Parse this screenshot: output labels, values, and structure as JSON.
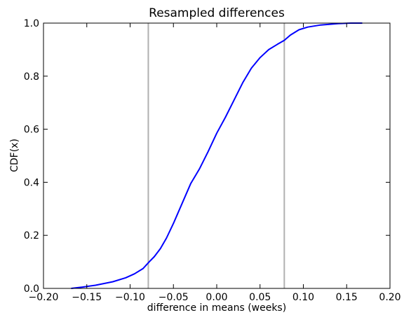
{
  "chart_data": {
    "type": "line",
    "title": "Resampled differences",
    "xlabel": "difference in means (weeks)",
    "ylabel": "CDF(x)",
    "xlim": [
      -0.2,
      0.2
    ],
    "ylim": [
      0.0,
      1.0
    ],
    "x_ticks": [
      "−0.20",
      "−0.15",
      "−0.10",
      "−0.05",
      "0.00",
      "0.05",
      "0.10",
      "0.15",
      "0.20"
    ],
    "y_ticks": [
      "0.0",
      "0.2",
      "0.4",
      "0.6",
      "0.8",
      "1.0"
    ],
    "grid": false,
    "series": [
      {
        "color": "#0000ff",
        "x": [
          -0.168,
          -0.155,
          -0.14,
          -0.12,
          -0.105,
          -0.095,
          -0.085,
          -0.078,
          -0.072,
          -0.065,
          -0.058,
          -0.05,
          -0.04,
          -0.03,
          -0.02,
          -0.01,
          0.0,
          0.01,
          0.02,
          0.03,
          0.04,
          0.05,
          0.06,
          0.07,
          0.078,
          0.085,
          0.095,
          0.105,
          0.12,
          0.14,
          0.155,
          0.168
        ],
        "y": [
          0.0,
          0.005,
          0.012,
          0.025,
          0.04,
          0.055,
          0.075,
          0.1,
          0.12,
          0.15,
          0.19,
          0.245,
          0.32,
          0.395,
          0.45,
          0.515,
          0.585,
          0.645,
          0.71,
          0.775,
          0.83,
          0.87,
          0.9,
          0.92,
          0.935,
          0.955,
          0.975,
          0.985,
          0.993,
          0.998,
          1.0,
          1.0
        ]
      }
    ],
    "vlines": [
      {
        "x": -0.079,
        "color": "#b0b0b0"
      },
      {
        "x": 0.078,
        "color": "#b0b0b0"
      }
    ]
  }
}
